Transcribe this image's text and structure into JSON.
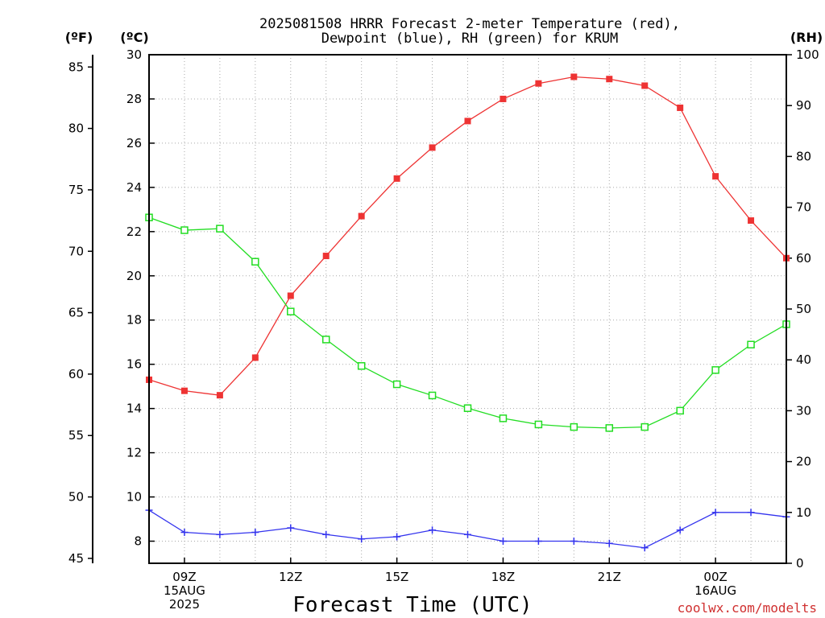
{
  "chart_data": {
    "type": "line",
    "title": [
      "2025081508 HRRR Forecast 2-meter Temperature (red),",
      "Dewpoint (blue), RH (green) for KRUM"
    ],
    "xlabel": "Forecast Time (UTC)",
    "x_ticks": [
      {
        "h": 9,
        "lines": [
          "09Z",
          "15AUG",
          "2025"
        ]
      },
      {
        "h": 12,
        "lines": [
          "12Z"
        ]
      },
      {
        "h": 15,
        "lines": [
          "15Z"
        ]
      },
      {
        "h": 18,
        "lines": [
          "18Z"
        ]
      },
      {
        "h": 21,
        "lines": [
          "21Z"
        ]
      },
      {
        "h": 24,
        "lines": [
          "00Z",
          "16AUG"
        ]
      }
    ],
    "xlim": [
      8,
      26
    ],
    "x": [
      8,
      9,
      10,
      11,
      12,
      13,
      14,
      15,
      16,
      17,
      18,
      19,
      20,
      21,
      22,
      23,
      24,
      25,
      26
    ],
    "axes": {
      "celsius": {
        "unit_label": "(ºC)",
        "lim": [
          7.0,
          30.0
        ],
        "ticks": [
          8,
          10,
          12,
          14,
          16,
          18,
          20,
          22,
          24,
          26,
          28,
          30
        ]
      },
      "fahrenheit": {
        "unit_label": "(ºF)",
        "lim": [
          44.6,
          86.0
        ],
        "ticks": [
          45,
          50,
          55,
          60,
          65,
          70,
          75,
          80,
          85
        ]
      },
      "rh": {
        "unit_label": "(RH)",
        "lim": [
          0,
          100
        ],
        "ticks": [
          0,
          10,
          20,
          30,
          40,
          50,
          60,
          70,
          80,
          90,
          100
        ]
      }
    },
    "series": [
      {
        "values": [
          15.3,
          14.8,
          14.6,
          16.3,
          19.1,
          20.9,
          22.7,
          24.4,
          25.8,
          27.0,
          28.0,
          28.7,
          29.0,
          28.9,
          28.6,
          27.6,
          24.5,
          22.5,
          20.8
        ],
        "color": "#ee3333",
        "axis": "celsius",
        "marker": "filled-square"
      },
      {
        "values": [
          9.4,
          8.4,
          8.3,
          8.4,
          8.6,
          8.3,
          8.1,
          8.2,
          8.5,
          8.3,
          8.0,
          8.0,
          8.0,
          7.9,
          7.7,
          8.5,
          9.3,
          9.3,
          9.1
        ],
        "color": "#3333ee",
        "axis": "celsius",
        "marker": "plus"
      },
      {
        "values": [
          68.0,
          65.5,
          65.8,
          59.3,
          49.5,
          44.0,
          38.8,
          35.2,
          33.0,
          30.5,
          28.5,
          27.3,
          26.8,
          26.6,
          26.8,
          30.0,
          38.0,
          43.0,
          47.0
        ],
        "color": "#22dd22",
        "axis": "rh",
        "marker": "open-square"
      }
    ],
    "grid": true,
    "credit": "coolwx.com/modelts"
  }
}
